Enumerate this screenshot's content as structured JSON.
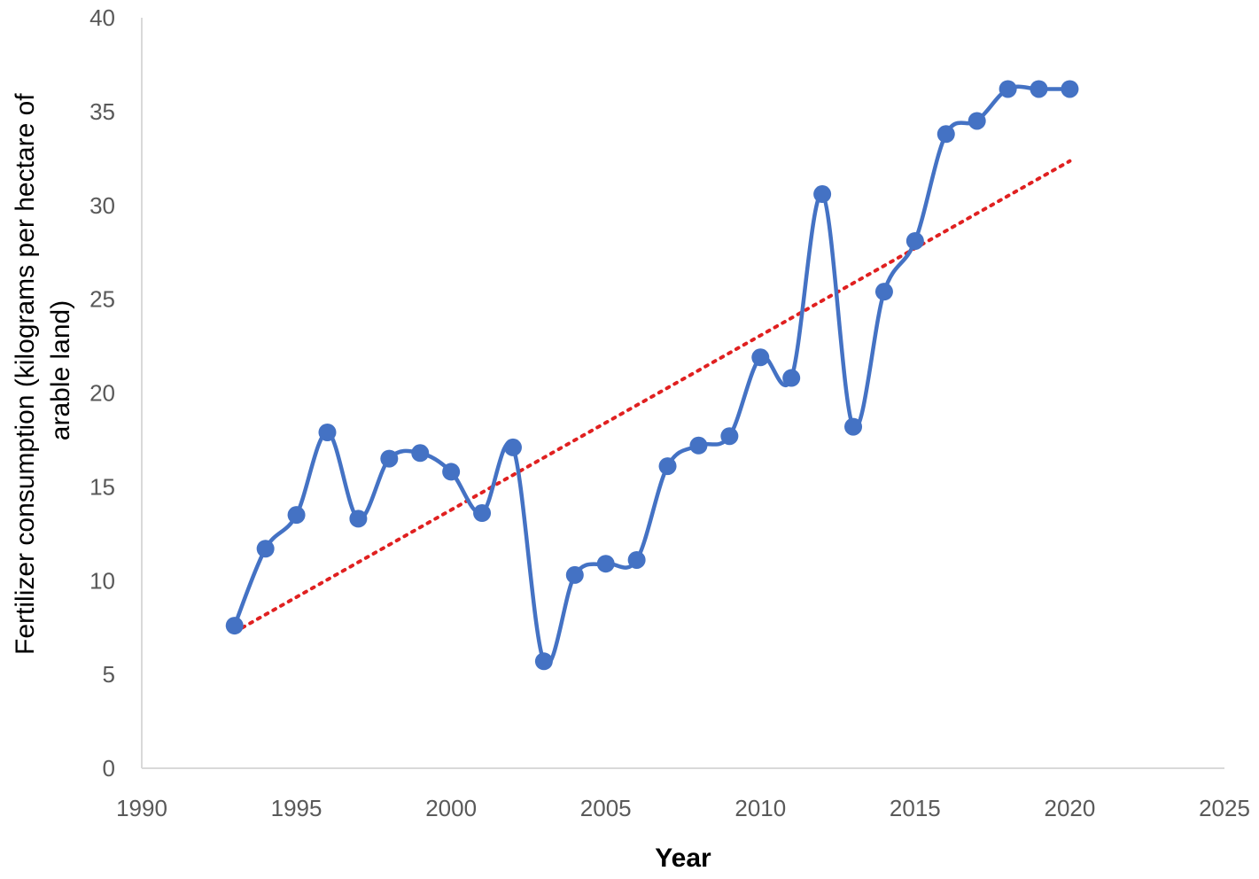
{
  "chart_data": {
    "type": "scatter",
    "xlabel": "Year",
    "ylabel_lines": [
      "Fertilizer consumption (kilograms per hectare of",
      "arable land)"
    ],
    "xlim": [
      1990,
      2025
    ],
    "ylim": [
      0,
      40
    ],
    "x_ticks": [
      1990,
      1995,
      2000,
      2005,
      2010,
      2015,
      2020,
      2025
    ],
    "y_ticks": [
      0,
      5,
      10,
      15,
      20,
      25,
      30,
      35,
      40
    ],
    "grid": false,
    "legend": "none",
    "series": [
      {
        "style": "smoothed line with circular markers",
        "color": "#4472C4",
        "x": [
          1993,
          1994,
          1995,
          1996,
          1997,
          1998,
          1999,
          2000,
          2001,
          2002,
          2003,
          2004,
          2005,
          2006,
          2007,
          2008,
          2009,
          2010,
          2011,
          2012,
          2013,
          2014,
          2015,
          2016,
          2017,
          2018,
          2019,
          2020
        ],
        "y": [
          7.6,
          11.7,
          13.5,
          17.9,
          13.3,
          16.5,
          16.8,
          15.8,
          13.6,
          17.1,
          5.7,
          10.3,
          10.9,
          11.1,
          16.1,
          17.2,
          17.7,
          21.9,
          20.8,
          30.6,
          18.2,
          25.4,
          28.1,
          33.8,
          34.5,
          36.2,
          36.2,
          36.2
        ]
      }
    ],
    "trendline": {
      "type": "linear",
      "style": "dotted",
      "color": "#E02020",
      "x_range": [
        1993,
        2020
      ]
    }
  }
}
